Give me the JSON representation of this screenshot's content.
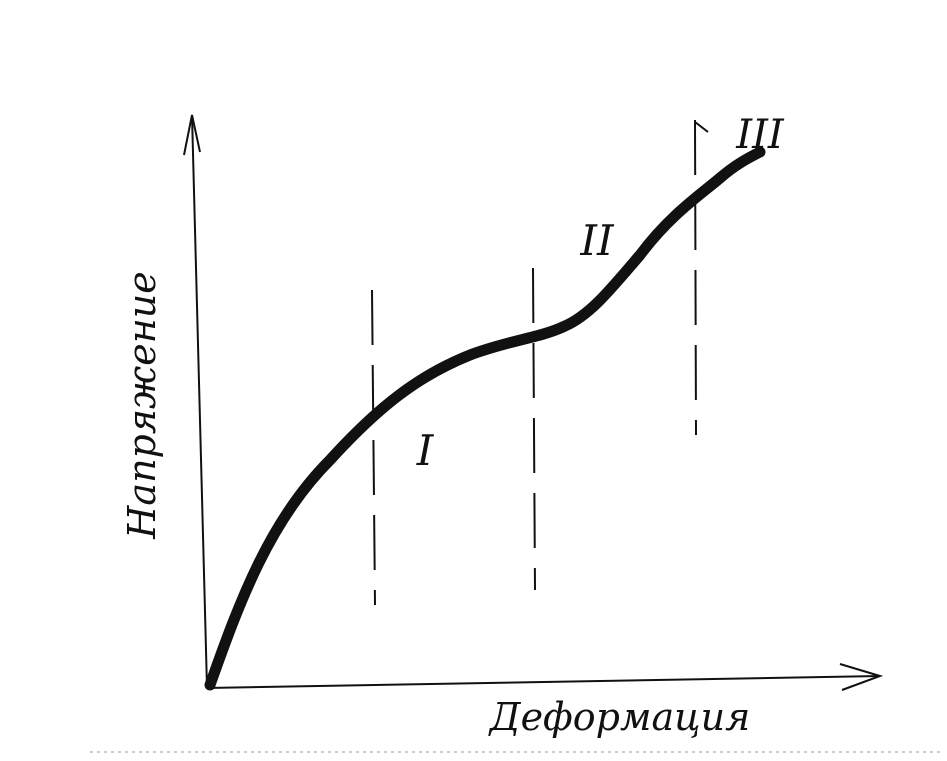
{
  "axes": {
    "y_label": "Напряжение",
    "x_label": "Деформация"
  },
  "regions": [
    {
      "label": "I"
    },
    {
      "label": "II"
    },
    {
      "label": "III"
    }
  ]
}
